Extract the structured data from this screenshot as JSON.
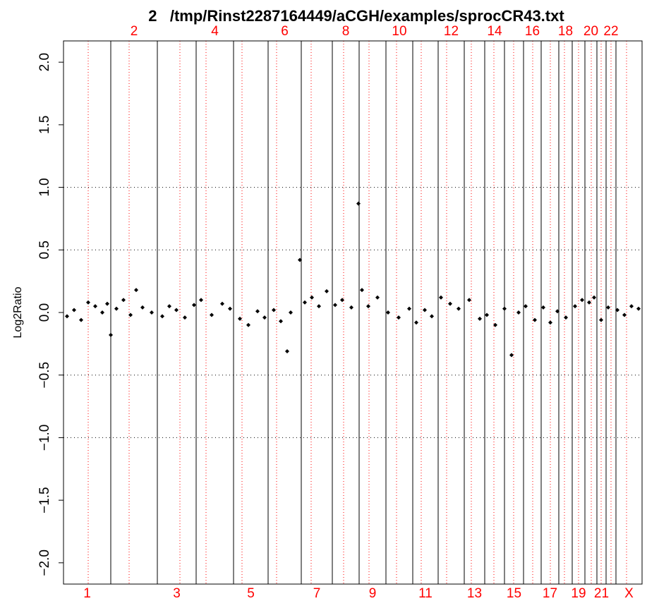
{
  "chart_data": {
    "type": "scatter",
    "title": "2   /tmp/Rinst2287164449/aCGH/examples/sprocCR43.txt",
    "ylabel": "Log2Ratio",
    "color": "#000000",
    "xlim": [
      0,
      820
    ],
    "ylim": [
      -2.17,
      2.17
    ],
    "yticks": [
      {
        "value": -2,
        "label": "−2.0"
      },
      {
        "value": -1.5,
        "label": "−1.5"
      },
      {
        "value": -1,
        "label": "−1.0"
      },
      {
        "value": -0.5,
        "label": "−0.5"
      },
      {
        "value": 0,
        "label": "0.0"
      },
      {
        "value": 0.5,
        "label": "0.5"
      },
      {
        "value": 1,
        "label": "1.0"
      },
      {
        "value": 1.5,
        "label": "1.5"
      },
      {
        "value": 2,
        "label": "2.0"
      }
    ],
    "ref_lines": [
      -1,
      -0.5,
      0.5,
      1
    ],
    "chromosomes": {
      "labels": [
        "1",
        "2",
        "3",
        "4",
        "5",
        "6",
        "7",
        "8",
        "9",
        "10",
        "11",
        "12",
        "13",
        "14",
        "15",
        "16",
        "17",
        "18",
        "19",
        "20",
        "21",
        "22",
        "X"
      ],
      "boundaries": [
        67,
        133,
        188,
        241,
        290,
        337,
        381,
        419,
        457,
        495,
        531,
        568,
        597,
        625,
        652,
        677,
        702,
        721,
        739,
        756,
        769,
        783
      ],
      "centromeres": [
        35,
        93,
        165,
        202,
        253,
        302,
        351,
        397,
        433,
        472,
        507,
        543,
        578,
        610,
        638,
        665,
        690,
        710,
        730,
        748,
        762,
        776,
        798
      ],
      "label_color": "#ff0000"
    },
    "x": [
      5,
      15,
      25,
      35,
      45,
      55,
      62,
      67,
      75,
      85,
      95,
      103,
      112,
      125,
      140,
      150,
      160,
      172,
      185,
      195,
      210,
      225,
      236,
      250,
      262,
      275,
      285,
      298,
      308,
      317,
      322,
      335,
      342,
      352,
      362,
      373,
      385,
      395,
      408,
      418,
      423,
      432,
      445,
      460,
      475,
      490,
      500,
      512,
      522,
      535,
      548,
      560,
      575,
      590,
      600,
      612,
      625,
      635,
      645,
      655,
      668,
      680,
      690,
      700,
      712,
      725,
      735,
      745,
      752,
      762,
      772,
      785,
      795,
      805,
      815
    ],
    "values": [
      -0.03,
      0.02,
      -0.06,
      0.08,
      0.05,
      0.0,
      0.07,
      -0.18,
      0.03,
      0.1,
      -0.02,
      0.18,
      0.04,
      0.0,
      -0.03,
      0.05,
      0.02,
      -0.04,
      0.06,
      0.1,
      -0.02,
      0.07,
      0.03,
      -0.05,
      -0.1,
      0.01,
      -0.04,
      0.02,
      -0.07,
      -0.31,
      0.0,
      0.42,
      0.08,
      0.12,
      0.05,
      0.17,
      0.06,
      0.1,
      0.04,
      0.87,
      0.18,
      0.05,
      0.12,
      0.0,
      -0.04,
      0.03,
      -0.08,
      0.02,
      -0.03,
      0.12,
      0.07,
      0.03,
      0.1,
      -0.05,
      -0.02,
      -0.1,
      0.03,
      -0.34,
      0.0,
      0.05,
      -0.06,
      0.04,
      -0.08,
      0.01,
      -0.04,
      0.05,
      0.1,
      0.08,
      0.12,
      -0.06,
      0.04,
      0.02,
      -0.02,
      0.05,
      0.03
    ]
  }
}
